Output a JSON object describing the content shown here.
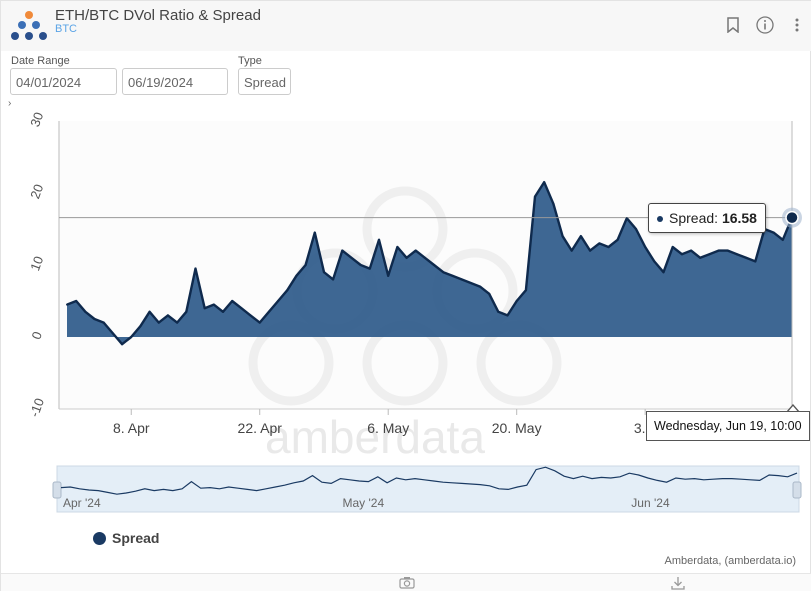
{
  "header": {
    "title": "ETH/BTC DVol Ratio & Spread",
    "subtitle": "BTC",
    "icons": [
      "logo-icon",
      "bookmark-icon",
      "info-icon",
      "more-vertical-icon"
    ]
  },
  "filters": {
    "date_range_label": "Date Range",
    "start_date": "04/01/2024",
    "end_date": "06/19/2024",
    "type_label": "Type",
    "type_value": "Spread"
  },
  "tooltip": {
    "series": "Spread",
    "value": "16.58",
    "date": "Wednesday, Jun 19, 10:00"
  },
  "legend": {
    "label": "Spread"
  },
  "credits": "Amberdata, (amberdata.io)",
  "watermark": "amberdata",
  "footer_icons": [
    "camera-icon",
    "download-icon"
  ],
  "colors": {
    "series": "#1a3a63",
    "area": "#2e5a8a",
    "subtitle": "#5ba4e6"
  },
  "chart_data": {
    "type": "area",
    "title": "ETH/BTC DVol Ratio & Spread",
    "series_name": "Spread",
    "x_start": "2024-04-01",
    "x_end": "2024-06-19",
    "x_tick_labels": [
      "8. Apr",
      "22. Apr",
      "6. May",
      "20. May",
      "3. J"
    ],
    "y_tick_labels": [
      "30",
      "20",
      "10",
      "0",
      "-10"
    ],
    "ylim": [
      -10,
      30
    ],
    "grid": false,
    "navigator_tick_labels": [
      "Apr '24",
      "May '24",
      "Jun '24"
    ],
    "x": [
      "2024-04-01",
      "2024-04-02",
      "2024-04-03",
      "2024-04-04",
      "2024-04-05",
      "2024-04-06",
      "2024-04-07",
      "2024-04-08",
      "2024-04-09",
      "2024-04-10",
      "2024-04-11",
      "2024-04-12",
      "2024-04-13",
      "2024-04-14",
      "2024-04-15",
      "2024-04-16",
      "2024-04-17",
      "2024-04-18",
      "2024-04-19",
      "2024-04-20",
      "2024-04-21",
      "2024-04-22",
      "2024-04-23",
      "2024-04-24",
      "2024-04-25",
      "2024-04-26",
      "2024-04-27",
      "2024-04-28",
      "2024-04-29",
      "2024-04-30",
      "2024-05-01",
      "2024-05-02",
      "2024-05-03",
      "2024-05-04",
      "2024-05-05",
      "2024-05-06",
      "2024-05-07",
      "2024-05-08",
      "2024-05-09",
      "2024-05-10",
      "2024-05-11",
      "2024-05-12",
      "2024-05-13",
      "2024-05-14",
      "2024-05-15",
      "2024-05-16",
      "2024-05-17",
      "2024-05-18",
      "2024-05-19",
      "2024-05-20",
      "2024-05-21",
      "2024-05-22",
      "2024-05-23",
      "2024-05-24",
      "2024-05-25",
      "2024-05-26",
      "2024-05-27",
      "2024-05-28",
      "2024-05-29",
      "2024-05-30",
      "2024-05-31",
      "2024-06-01",
      "2024-06-02",
      "2024-06-03",
      "2024-06-04",
      "2024-06-05",
      "2024-06-06",
      "2024-06-07",
      "2024-06-08",
      "2024-06-09",
      "2024-06-10",
      "2024-06-11",
      "2024-06-12",
      "2024-06-13",
      "2024-06-14",
      "2024-06-15",
      "2024-06-16",
      "2024-06-17",
      "2024-06-18",
      "2024-06-19"
    ],
    "values": [
      4.5,
      5.0,
      3.5,
      2.5,
      2.0,
      0.5,
      -1.0,
      0.0,
      1.5,
      3.5,
      2.0,
      3.0,
      2.0,
      3.5,
      9.5,
      4.0,
      4.5,
      3.5,
      5.0,
      4.0,
      3.0,
      2.0,
      3.5,
      5.0,
      6.5,
      8.5,
      10.0,
      14.5,
      9.0,
      8.0,
      12.0,
      11.0,
      10.0,
      9.5,
      13.5,
      8.5,
      12.5,
      11.0,
      12.0,
      11.0,
      10.0,
      9.0,
      8.5,
      8.0,
      7.5,
      7.0,
      6.0,
      3.5,
      3.0,
      5.0,
      6.5,
      19.5,
      21.5,
      18.5,
      14.0,
      12.0,
      14.0,
      12.0,
      13.0,
      12.5,
      13.5,
      16.5,
      15.0,
      12.5,
      10.5,
      9.0,
      12.5,
      11.5,
      12.0,
      11.0,
      11.5,
      12.0,
      12.0,
      11.5,
      11.0,
      10.5,
      15.0,
      14.5,
      13.5,
      16.58
    ]
  }
}
